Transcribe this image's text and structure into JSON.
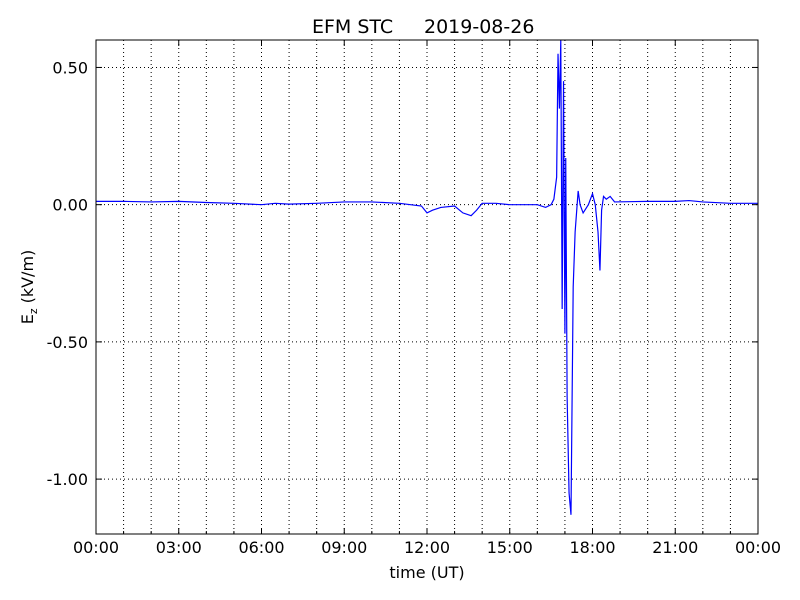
{
  "chart_data": {
    "type": "line",
    "title": "EFM STC",
    "subtitle": "2019-08-26",
    "xlabel": "time (UT)",
    "ylabel": "E",
    "ylabel_sub": "z",
    "ylabel_unit": "(kV/m)",
    "xlim": [
      0,
      24
    ],
    "ylim": [
      -1.2,
      0.6
    ],
    "xticks": [
      {
        "value": 0,
        "label": "00:00"
      },
      {
        "value": 3,
        "label": "03:00"
      },
      {
        "value": 6,
        "label": "06:00"
      },
      {
        "value": 9,
        "label": "09:00"
      },
      {
        "value": 12,
        "label": "12:00"
      },
      {
        "value": 15,
        "label": "15:00"
      },
      {
        "value": 18,
        "label": "18:00"
      },
      {
        "value": 21,
        "label": "21:00"
      },
      {
        "value": 24,
        "label": "00:00"
      }
    ],
    "xminorticks": [
      1,
      2,
      4,
      5,
      7,
      8,
      10,
      11,
      13,
      14,
      16,
      17,
      19,
      20,
      22,
      23
    ],
    "yticks": [
      {
        "value": 0.5,
        "label": "0.50"
      },
      {
        "value": 0,
        "label": "0.00"
      },
      {
        "value": -0.5,
        "label": "-0.50"
      },
      {
        "value": -1,
        "label": "-1.00"
      }
    ],
    "grid": true,
    "series": [
      {
        "color": "#0000ff",
        "x": [
          0,
          1,
          2,
          3,
          4,
          5,
          6,
          6.5,
          7,
          8,
          9,
          10,
          11,
          11.8,
          12,
          12.2,
          12.5,
          13,
          13.3,
          13.6,
          13.8,
          14,
          14.5,
          15,
          15.5,
          16,
          16.3,
          16.5,
          16.6,
          16.7,
          16.75,
          16.8,
          16.85,
          16.9,
          16.95,
          17.0,
          17.03,
          17.08,
          17.15,
          17.22,
          17.3,
          17.37,
          17.48,
          17.55,
          17.66,
          17.85,
          18.0,
          18.1,
          18.2,
          18.27,
          18.33,
          18.4,
          18.5,
          18.64,
          18.8,
          20,
          21,
          21.5,
          22,
          23,
          24
        ],
        "values": [
          0.012,
          0.012,
          0.01,
          0.012,
          0.008,
          0.005,
          0.0,
          0.005,
          0.002,
          0.005,
          0.01,
          0.01,
          0.005,
          -0.005,
          -0.03,
          -0.02,
          -0.01,
          -0.005,
          -0.03,
          -0.04,
          -0.02,
          0.005,
          0.005,
          0.0,
          0.0,
          0.0,
          -0.01,
          0.0,
          0.02,
          0.1,
          0.55,
          0.35,
          0.6,
          -0.38,
          0.45,
          -0.47,
          0.17,
          -0.7,
          -1.05,
          -1.13,
          -0.3,
          -0.1,
          0.05,
          0.0,
          -0.03,
          0.0,
          0.04,
          0.0,
          -0.1,
          -0.24,
          -0.02,
          0.03,
          0.02,
          0.03,
          0.01,
          0.012,
          0.012,
          0.015,
          0.01,
          0.005,
          0.005
        ]
      }
    ]
  }
}
